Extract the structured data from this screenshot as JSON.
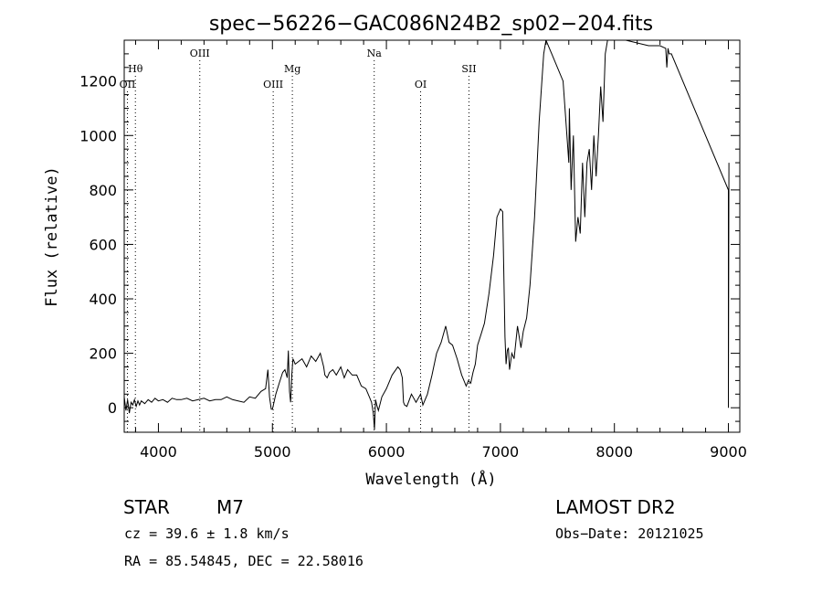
{
  "colors": {
    "ink": "#000000",
    "background": "#ffffff"
  },
  "chart_data": {
    "type": "line",
    "title": "spec−56226−GAC086N24B2_sp02−204.fits",
    "xlabel": "Wavelength (Å)",
    "ylabel": "Flux (relative)",
    "xlim": [
      3700,
      9100
    ],
    "ylim": [
      -90,
      1350
    ],
    "x_ticks": [
      4000,
      5000,
      6000,
      7000,
      8000,
      9000
    ],
    "y_ticks": [
      0,
      200,
      400,
      600,
      800,
      1000,
      1200
    ],
    "grid": false,
    "line_markers": [
      {
        "label": "Hθ",
        "x": 3798,
        "row": "upper"
      },
      {
        "label": "OII",
        "x": 3728,
        "row": "lower"
      },
      {
        "label": "OIII",
        "x": 4363,
        "row": "top"
      },
      {
        "label": "OIII",
        "x": 5007,
        "row": "lower"
      },
      {
        "label": "Mg",
        "x": 5175,
        "row": "upper"
      },
      {
        "label": "Na",
        "x": 5893,
        "row": "top"
      },
      {
        "label": "OI",
        "x": 6300,
        "row": "lower"
      },
      {
        "label": "SII",
        "x": 6724,
        "row": "upper"
      }
    ],
    "series": [
      {
        "x": [
          3700,
          3715,
          3730,
          3745,
          3760,
          3775,
          3790,
          3805,
          3820,
          3835,
          3850,
          3880,
          3910,
          3940,
          3970,
          4000,
          4040,
          4080,
          4120,
          4160,
          4200,
          4250,
          4300,
          4350,
          4400,
          4450,
          4500,
          4550,
          4600,
          4650,
          4700,
          4750,
          4800,
          4850,
          4900,
          4940,
          4960,
          4975,
          4990,
          5000,
          5030,
          5060,
          5090,
          5110,
          5130,
          5140,
          5150,
          5160,
          5170,
          5180,
          5190,
          5200,
          5230,
          5260,
          5300,
          5340,
          5380,
          5420,
          5450,
          5460,
          5480,
          5500,
          5530,
          5560,
          5600,
          5630,
          5660,
          5700,
          5740,
          5780,
          5820,
          5850,
          5870,
          5885,
          5895,
          5905,
          5915,
          5930,
          5960,
          6000,
          6050,
          6100,
          6120,
          6140,
          6150,
          6160,
          6180,
          6220,
          6260,
          6300,
          6320,
          6360,
          6400,
          6440,
          6480,
          6520,
          6550,
          6580,
          6620,
          6660,
          6700,
          6720,
          6740,
          6760,
          6780,
          6800,
          6830,
          6860,
          6900,
          6940,
          6970,
          7000,
          7020,
          7040,
          7050,
          7060,
          7070,
          7080,
          7100,
          7120,
          7150,
          7180,
          7200,
          7230,
          7260,
          7300,
          7340,
          7380,
          7400,
          7450,
          7500,
          7550,
          7600,
          7605,
          7620,
          7640,
          7660,
          7680,
          7700,
          7720,
          7740,
          7760,
          7780,
          7800,
          7820,
          7840,
          7860,
          7880,
          7900,
          7920,
          7940,
          8100,
          8300,
          8400,
          8450,
          8460,
          8470,
          8480,
          8500,
          9000,
          9000,
          9005
        ],
        "y": [
          40,
          -10,
          30,
          -20,
          20,
          10,
          30,
          5,
          25,
          10,
          25,
          15,
          30,
          20,
          35,
          25,
          30,
          20,
          35,
          30,
          30,
          35,
          25,
          30,
          35,
          25,
          30,
          30,
          40,
          30,
          25,
          20,
          40,
          35,
          60,
          70,
          140,
          40,
          -5,
          -5,
          50,
          90,
          130,
          140,
          110,
          210,
          60,
          20,
          120,
          180,
          170,
          160,
          170,
          180,
          150,
          190,
          170,
          200,
          150,
          120,
          110,
          130,
          140,
          120,
          150,
          110,
          140,
          120,
          120,
          80,
          70,
          40,
          20,
          -20,
          -80,
          30,
          10,
          -10,
          40,
          70,
          120,
          150,
          140,
          110,
          20,
          10,
          5,
          50,
          20,
          50,
          10,
          50,
          120,
          200,
          240,
          300,
          240,
          230,
          180,
          120,
          80,
          100,
          90,
          130,
          160,
          230,
          270,
          310,
          420,
          560,
          700,
          730,
          720,
          260,
          160,
          210,
          220,
          140,
          200,
          180,
          300,
          220,
          280,
          330,
          450,
          700,
          1050,
          1300,
          1350,
          1300,
          1250,
          1200,
          900,
          1100,
          800,
          1000,
          610,
          700,
          640,
          900,
          700,
          900,
          950,
          800,
          1000,
          850,
          1000,
          1180,
          1050,
          1300,
          1350,
          1350,
          1330,
          1330,
          1320,
          1250,
          1320,
          1300,
          1300,
          800,
          0,
          900
        ]
      }
    ]
  },
  "info": {
    "object_class": "STAR",
    "subclass": "M7",
    "survey": "LAMOST DR2",
    "redshift": "cz = 39.6 ± 1.8 km/s",
    "obs_date": "Obs−Date: 20121025",
    "coords": "RA =  85.54845, DEC =  22.58016"
  }
}
